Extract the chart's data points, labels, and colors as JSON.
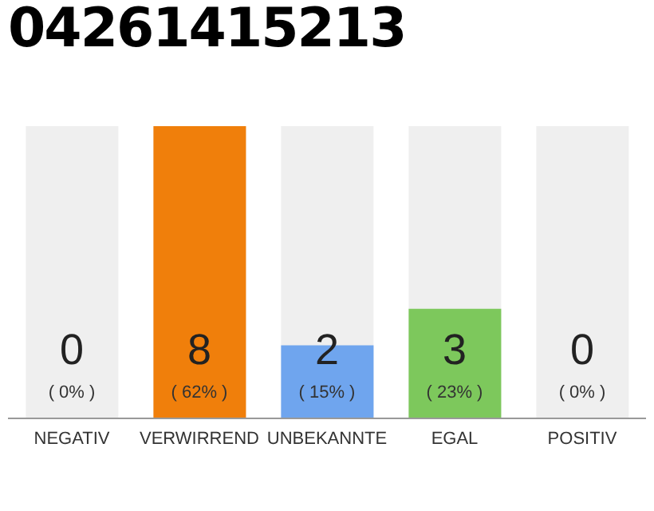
{
  "chart_data": {
    "type": "bar",
    "title": "04261415213",
    "categories": [
      "NEGATIV",
      "VERWIRREND",
      "UNBEKANNTE",
      "EGAL",
      "POSITIV"
    ],
    "values": [
      0,
      8,
      2,
      3,
      0
    ],
    "colors": [
      "#e0e0e0",
      "#f07f0b",
      "#6fa5ee",
      "#7dc85c",
      "#e0e0e0"
    ],
    "data_labels": true,
    "annotations": [
      "( 0% )",
      "( 62% )",
      "( 15% )",
      "( 23% )",
      "( 0% )"
    ]
  }
}
